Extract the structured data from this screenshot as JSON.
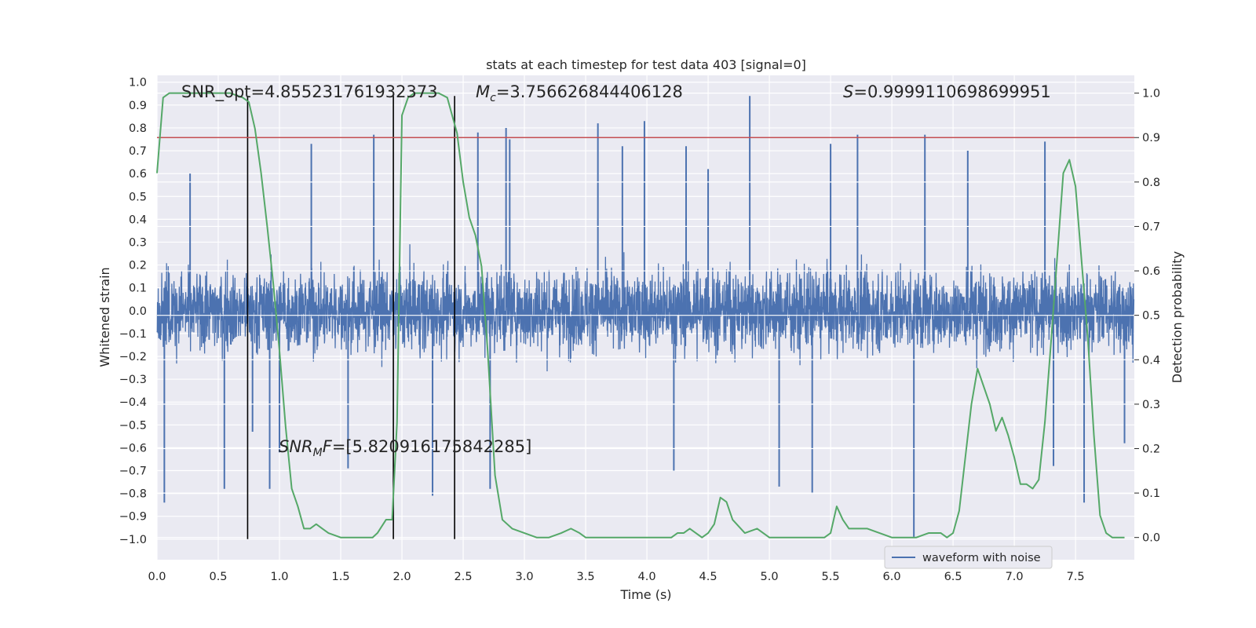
{
  "chart_data": {
    "type": "line",
    "title": "stats at each timestep for test data 403 [signal=0]",
    "xlabel": "Time (s)",
    "ylabel": "Whitened strain",
    "y2label": "Detection probability",
    "xlim": [
      0.0,
      7.98
    ],
    "ylim": [
      -1.09,
      1.03
    ],
    "y2lim": [
      -0.05,
      1.04
    ],
    "x_ticks": [
      0.0,
      0.5,
      1.0,
      1.5,
      2.0,
      2.5,
      3.0,
      3.5,
      4.0,
      4.5,
      5.0,
      5.5,
      6.0,
      6.5,
      7.0,
      7.5
    ],
    "x_tick_labels": [
      "0.0",
      "0.5",
      "1.0",
      "1.5",
      "2.0",
      "2.5",
      "3.0",
      "3.5",
      "4.0",
      "4.5",
      "5.0",
      "5.5",
      "6.0",
      "6.5",
      "7.0",
      "7.5"
    ],
    "y_ticks": [
      1.0,
      0.9,
      0.8,
      0.7,
      0.6,
      0.5,
      0.4,
      0.3,
      0.2,
      0.1,
      0.0,
      -0.1,
      -0.2,
      -0.3,
      -0.4,
      -0.5,
      -0.6,
      -0.7,
      -0.8,
      -0.9,
      -1.0
    ],
    "y_tick_labels": [
      "1.0",
      "0.9",
      "0.8",
      "0.7",
      "0.6",
      "0.5",
      "0.4",
      "0.3",
      "0.2",
      "0.1",
      "0.0",
      "−0.1",
      "−0.2",
      "−0.3",
      "−0.4",
      "−0.5",
      "−0.6",
      "−0.7",
      "−0.8",
      "−0.9",
      "−1.0"
    ],
    "y2_ticks": [
      1.0,
      0.9,
      0.8,
      0.7,
      0.6,
      0.5,
      0.4,
      0.3,
      0.2,
      0.1,
      0.0
    ],
    "y2_tick_labels": [
      "1.0",
      "0.9",
      "0.8",
      "0.7",
      "0.6",
      "0.5",
      "0.4",
      "0.3",
      "0.2",
      "0.1",
      "0.0"
    ],
    "grid": true,
    "legend": {
      "entries": [
        "waveform with noise"
      ],
      "placement": "bottom-right"
    },
    "annotations": {
      "snr_opt": "SNR_opt=4.855231761932373",
      "mc_symbol": "M",
      "mc_sub": "c",
      "mc_value": "=3.756626844406128",
      "s_symbol": "S",
      "s_value": "=0.9999110698699951",
      "snr_mf_symbol": "SNR",
      "snr_mf_sub": "M",
      "snr_mf_f": "F",
      "snr_mf_value": "=[5.820916175842285]"
    },
    "waveform": {
      "name": "waveform with noise",
      "color": "#4c72b0",
      "samples_per_second": 512,
      "typical_amplitude": 0.17,
      "spikes": [
        {
          "t": 0.06,
          "v": -0.84
        },
        {
          "t": 0.27,
          "v": 0.6
        },
        {
          "t": 0.55,
          "v": -0.78
        },
        {
          "t": 0.78,
          "v": -0.53
        },
        {
          "t": 0.92,
          "v": -0.78
        },
        {
          "t": 1.0,
          "v": -0.62
        },
        {
          "t": 1.26,
          "v": 0.73
        },
        {
          "t": 1.56,
          "v": -0.69
        },
        {
          "t": 1.77,
          "v": 0.77
        },
        {
          "t": 2.25,
          "v": -0.81
        },
        {
          "t": 2.62,
          "v": 0.78
        },
        {
          "t": 2.72,
          "v": -0.78
        },
        {
          "t": 2.85,
          "v": 0.8
        },
        {
          "t": 2.88,
          "v": 0.75
        },
        {
          "t": 3.6,
          "v": 0.82
        },
        {
          "t": 3.8,
          "v": 0.72
        },
        {
          "t": 3.98,
          "v": 0.83
        },
        {
          "t": 4.22,
          "v": -0.7
        },
        {
          "t": 4.32,
          "v": 0.72
        },
        {
          "t": 4.5,
          "v": 0.62
        },
        {
          "t": 4.84,
          "v": 0.94
        },
        {
          "t": 5.08,
          "v": -0.77
        },
        {
          "t": 5.35,
          "v": -0.8
        },
        {
          "t": 5.5,
          "v": 0.73
        },
        {
          "t": 5.72,
          "v": 0.77
        },
        {
          "t": 6.18,
          "v": -0.99
        },
        {
          "t": 6.27,
          "v": 0.77
        },
        {
          "t": 6.62,
          "v": 0.7
        },
        {
          "t": 7.25,
          "v": 0.74
        },
        {
          "t": 7.57,
          "v": -0.84
        },
        {
          "t": 7.32,
          "v": -0.68
        },
        {
          "t": 7.9,
          "v": -0.58
        }
      ]
    },
    "probability": {
      "color": "#55a868",
      "x": [
        0.0,
        0.05,
        0.1,
        0.2,
        0.3,
        0.4,
        0.5,
        0.6,
        0.7,
        0.75,
        0.8,
        0.85,
        0.9,
        0.95,
        1.0,
        1.05,
        1.1,
        1.15,
        1.2,
        1.25,
        1.3,
        1.35,
        1.4,
        1.5,
        1.6,
        1.7,
        1.76,
        1.8,
        1.87,
        1.92,
        1.96,
        2.0,
        2.05,
        2.1,
        2.2,
        2.3,
        2.37,
        2.45,
        2.5,
        2.55,
        2.6,
        2.65,
        2.7,
        2.76,
        2.82,
        2.9,
        3.0,
        3.1,
        3.2,
        3.3,
        3.38,
        3.45,
        3.5,
        3.6,
        3.7,
        3.8,
        3.9,
        4.0,
        4.1,
        4.2,
        4.25,
        4.3,
        4.35,
        4.4,
        4.45,
        4.5,
        4.55,
        4.6,
        4.65,
        4.7,
        4.8,
        4.9,
        5.0,
        5.2,
        5.4,
        5.45,
        5.5,
        5.55,
        5.6,
        5.65,
        5.7,
        5.75,
        5.8,
        5.9,
        6.0,
        6.1,
        6.2,
        6.3,
        6.4,
        6.45,
        6.5,
        6.55,
        6.6,
        6.65,
        6.7,
        6.75,
        6.8,
        6.85,
        6.9,
        6.95,
        7.0,
        7.05,
        7.1,
        7.15,
        7.2,
        7.25,
        7.3,
        7.35,
        7.4,
        7.45,
        7.5,
        7.55,
        7.6,
        7.65,
        7.7,
        7.75,
        7.8,
        7.9
      ],
      "y": [
        0.82,
        0.99,
        1.0,
        1.0,
        1.0,
        1.0,
        1.0,
        1.0,
        0.99,
        0.98,
        0.92,
        0.82,
        0.7,
        0.57,
        0.42,
        0.25,
        0.11,
        0.07,
        0.02,
        0.02,
        0.03,
        0.02,
        0.01,
        0.0,
        0.0,
        0.0,
        0.0,
        0.01,
        0.04,
        0.04,
        0.26,
        0.95,
        0.99,
        1.0,
        1.0,
        1.0,
        0.99,
        0.91,
        0.8,
        0.72,
        0.68,
        0.61,
        0.42,
        0.14,
        0.04,
        0.02,
        0.01,
        0.0,
        0.0,
        0.01,
        0.02,
        0.01,
        0.0,
        0.0,
        0.0,
        0.0,
        0.0,
        0.0,
        0.0,
        0.0,
        0.01,
        0.01,
        0.02,
        0.01,
        0.0,
        0.01,
        0.03,
        0.09,
        0.08,
        0.04,
        0.01,
        0.02,
        0.0,
        0.0,
        0.0,
        0.0,
        0.01,
        0.07,
        0.04,
        0.02,
        0.02,
        0.02,
        0.02,
        0.01,
        0.0,
        0.0,
        0.0,
        0.01,
        0.01,
        0.0,
        0.01,
        0.06,
        0.18,
        0.3,
        0.38,
        0.34,
        0.3,
        0.24,
        0.27,
        0.23,
        0.18,
        0.12,
        0.12,
        0.11,
        0.13,
        0.26,
        0.44,
        0.63,
        0.82,
        0.85,
        0.79,
        0.62,
        0.45,
        0.23,
        0.05,
        0.01,
        0.0,
        0.0
      ]
    },
    "threshold": {
      "y2": 0.9,
      "color": "#c44e52"
    },
    "vlines_x": [
      0.74,
      1.93,
      2.43
    ]
  }
}
